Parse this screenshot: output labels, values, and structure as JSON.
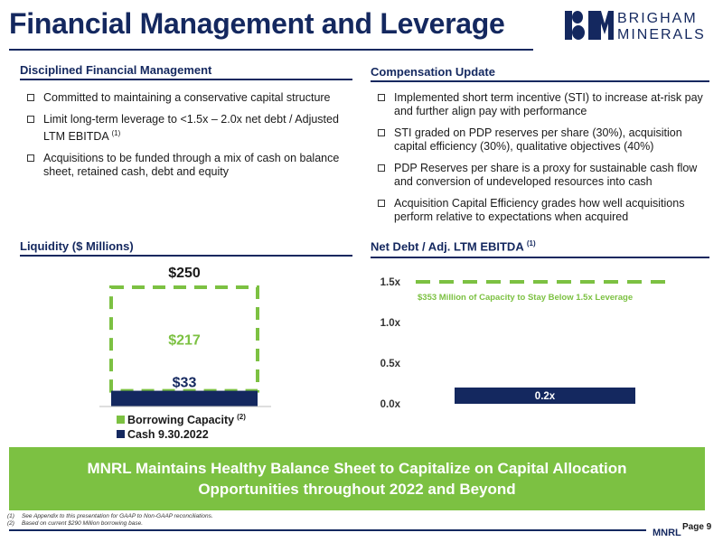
{
  "header": {
    "title": "Financial Management and Leverage",
    "logo_line1": "BRIGHAM",
    "logo_line2": "MINERALS"
  },
  "disciplined": {
    "title": "Disciplined Financial Management",
    "bullets": [
      "Committed to maintaining a conservative capital structure",
      "Limit long-term leverage to <1.5x – 2.0x net debt / Adjusted LTM EBITDA",
      "Acquisitions to be funded through a mix of cash on balance sheet, retained cash, debt and equity"
    ],
    "bullet2_note": "(1)"
  },
  "compensation": {
    "title": "Compensation Update",
    "bullets": [
      "Implemented short term incentive (STI) to increase at-risk pay and further align pay with performance",
      "STI graded on PDP reserves per share (30%), acquisition capital efficiency (30%), qualitative objectives (40%)",
      "PDP Reserves per share is a proxy for sustainable cash flow and conversion of undeveloped resources into cash",
      "Acquisition Capital Efficiency grades how well acquisitions perform relative to expectations when acquired"
    ]
  },
  "liquidity": {
    "title": "Liquidity ($ Millions)",
    "legend_borrowing": "Borrowing Capacity",
    "legend_borrowing_note": "(2)",
    "legend_cash": "Cash 9.30.2022"
  },
  "netdebt": {
    "title": "Net Debt / Adj. LTM EBITDA",
    "title_note": "(1)"
  },
  "chart_data": [
    {
      "type": "bar",
      "stacked": true,
      "categories": [
        ""
      ],
      "series": [
        {
          "name": "Cash 9.30.2022",
          "values": [
            33
          ],
          "label": "$33",
          "color": "#14285f"
        },
        {
          "name": "Borrowing Capacity",
          "values": [
            217
          ],
          "label": "$217",
          "color": "#7cc142",
          "style": "dashed-outline"
        }
      ],
      "total": 250,
      "total_label": "$250",
      "ylim": [
        0,
        250
      ],
      "grid": false,
      "legend": "bottom"
    },
    {
      "type": "bar",
      "categories": [
        ""
      ],
      "values": [
        0.2
      ],
      "value_label": "0.2x",
      "yticks": [
        "0.0x",
        "0.5x",
        "1.0x",
        "1.5x"
      ],
      "ytick_values": [
        0,
        0.5,
        1.0,
        1.5
      ],
      "ylim": [
        0,
        1.5
      ],
      "threshold": 1.5,
      "threshold_annotation": "$353 Million of Capacity to Stay Below 1.5x Leverage",
      "bar_color": "#14285f",
      "threshold_color": "#7cc142",
      "grid": false
    }
  ],
  "banner": {
    "line1": "MNRL Maintains Healthy Balance Sheet to Capitalize on Capital Allocation",
    "line2": "Opportunities throughout 2022 and Beyond"
  },
  "footnotes": [
    {
      "marker": "(1)",
      "text": "See Appendix to this presentation for GAAP to Non-GAAP reconciliations."
    },
    {
      "marker": "(2)",
      "text": "Based on current $290 Million borrowing base."
    }
  ],
  "footer": {
    "code": "MNRL",
    "page": "Page 9"
  },
  "colors": {
    "navy": "#14285f",
    "green": "#7cc142"
  }
}
